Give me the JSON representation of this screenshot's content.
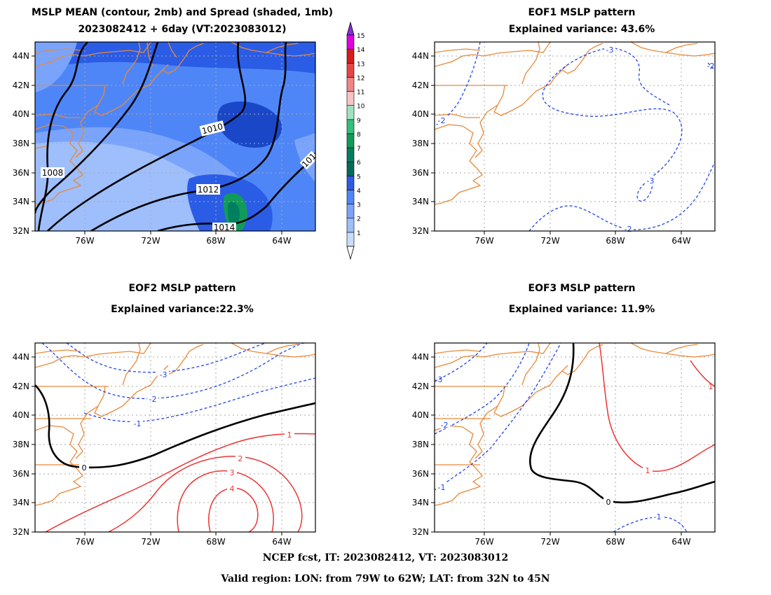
{
  "panels": [
    {
      "id": "mean",
      "title_line1": "MSLP MEAN (contour, 2mb) and Spread (shaded, 1mb)",
      "title_line2": "2023082412 + 6day (VT:2023083012)",
      "contour_labels": [
        "1008",
        "1010",
        "1012",
        "1014",
        "101"
      ]
    },
    {
      "id": "eof1",
      "title_line1": "EOF1 MSLP pattern",
      "title_line2": "Explained variance: 43.6%",
      "contour_labels": [
        "-3",
        "-2",
        "-3",
        "-2",
        "-2"
      ]
    },
    {
      "id": "eof2",
      "title_line1": "EOF2 MSLP pattern",
      "title_line2": "Explained variance:22.3%",
      "contour_labels": [
        "-3",
        "-2",
        "-1",
        "0",
        "1",
        "2",
        "3",
        "4"
      ]
    },
    {
      "id": "eof3",
      "title_line1": "EOF3 MSLP pattern",
      "title_line2": "Explained variance: 11.9%",
      "contour_labels": [
        "-3",
        "-2",
        "-1",
        "0",
        "1",
        "-1",
        "1"
      ]
    }
  ],
  "axes": {
    "x_ticks": [
      "76W",
      "72W",
      "68W",
      "64W"
    ],
    "y_ticks": [
      "44N",
      "42N",
      "40N",
      "38N",
      "36N",
      "34N",
      "32N"
    ]
  },
  "colorbar": {
    "labels": [
      "1",
      "2",
      "3",
      "4",
      "5",
      "6",
      "7",
      "8",
      "9",
      "10",
      "11",
      "12",
      "13",
      "14",
      "15"
    ],
    "colors": [
      "#c8dcff",
      "#9ebefc",
      "#7aa4fb",
      "#4f86f7",
      "#2a5ce6",
      "#006b5c",
      "#007f5f",
      "#119b5a",
      "#2fc07c",
      "#9ee3c0",
      "#f7c4c4",
      "#f08585",
      "#e84545",
      "#d81a1a",
      "#e000e0"
    ],
    "top_color": "#8a2be2"
  },
  "footer": {
    "line1": "NCEP fcst, IT: 2023082412, VT: 2023083012",
    "line2": "Valid region: LON: from 79W to 62W; LAT: from 32N to 45N"
  },
  "chart_data": [
    {
      "type": "heatmap",
      "title": "MSLP MEAN (contour, 2mb) and Spread (shaded, 1mb)",
      "subtitle": "2023082412 + 6day (VT:2023083012)",
      "x_range": [
        "79W",
        "62W"
      ],
      "y_range": [
        "32N",
        "45N"
      ],
      "contour_interval_mb": 2,
      "contour_levels": [
        1008,
        1010,
        1012,
        1014
      ],
      "shading_interval_mb": 1,
      "shading_range": [
        1,
        15
      ],
      "grid": true
    },
    {
      "type": "heatmap",
      "title": "EOF1 MSLP pattern",
      "explained_variance_percent": 43.6,
      "contour_levels": [
        -3,
        -2
      ],
      "x_range": [
        "79W",
        "62W"
      ],
      "y_range": [
        "32N",
        "45N"
      ],
      "grid": true
    },
    {
      "type": "heatmap",
      "title": "EOF2 MSLP pattern",
      "explained_variance_percent": 22.3,
      "contour_levels": [
        -3,
        -2,
        -1,
        0,
        1,
        2,
        3,
        4
      ],
      "x_range": [
        "79W",
        "62W"
      ],
      "y_range": [
        "32N",
        "45N"
      ],
      "grid": true
    },
    {
      "type": "heatmap",
      "title": "EOF3 MSLP pattern",
      "explained_variance_percent": 11.9,
      "contour_levels": [
        -3,
        -2,
        -1,
        0,
        1
      ],
      "x_range": [
        "79W",
        "62W"
      ],
      "y_range": [
        "32N",
        "45N"
      ],
      "grid": true
    }
  ]
}
